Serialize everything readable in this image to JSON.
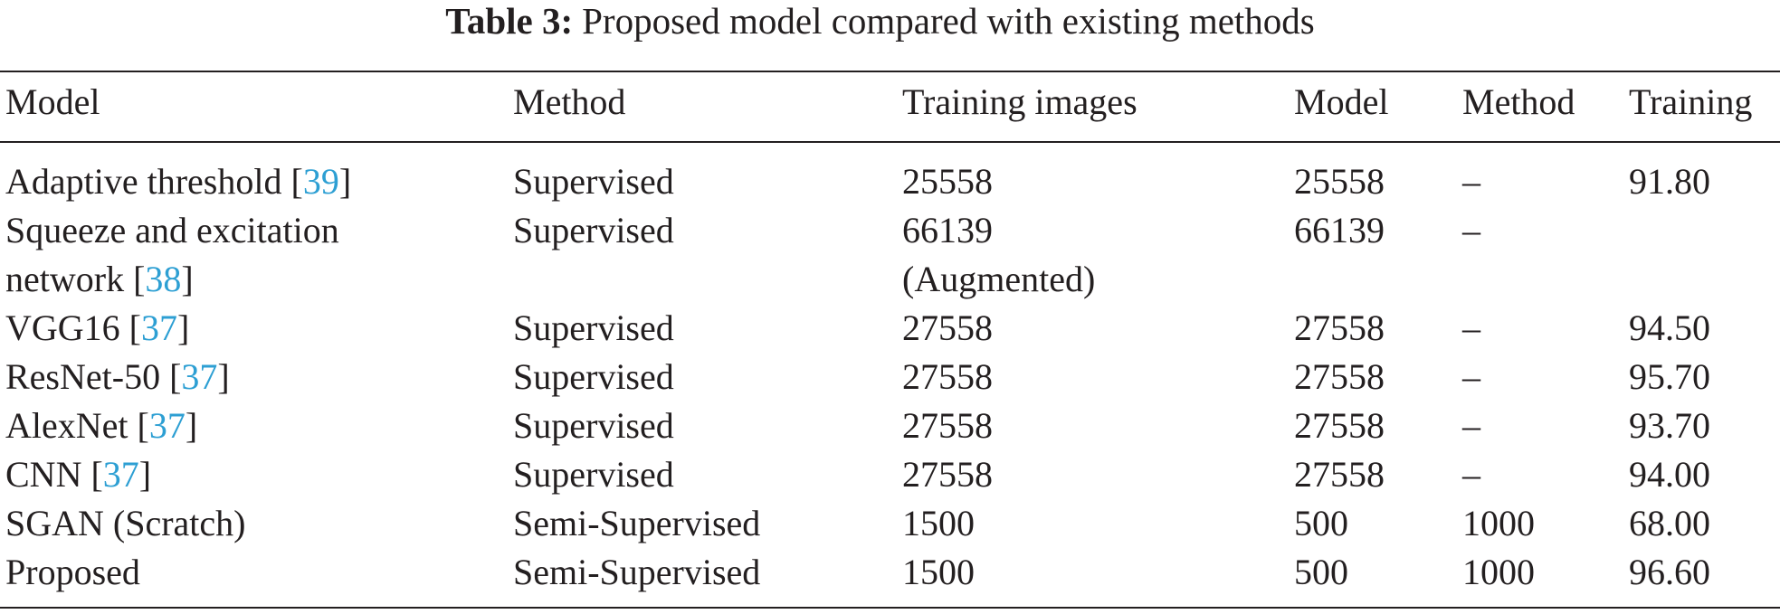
{
  "caption": {
    "label": "Table 3:",
    "text": "Proposed model compared with existing methods"
  },
  "table": {
    "header": [
      "Model",
      "Method",
      "Training images",
      "Model",
      "Method",
      "Training"
    ],
    "rows": [
      [
        [
          {
            "text": "Adaptive threshold ["
          },
          {
            "text": "39",
            "link": true
          },
          {
            "text": "]"
          }
        ],
        "Supervised",
        "25558",
        "25558",
        "–",
        "91.80"
      ],
      [
        [
          {
            "text": "Squeeze and excitation\nnetwork ["
          },
          {
            "text": "38",
            "link": true
          },
          {
            "text": "]"
          }
        ],
        "Supervised",
        "66139\n(Augmented)",
        "66139",
        "–",
        null
      ],
      [
        [
          {
            "text": "VGG16 ["
          },
          {
            "text": "37",
            "link": true
          },
          {
            "text": "]"
          }
        ],
        "Supervised",
        "27558",
        "27558",
        "–",
        "94.50"
      ],
      [
        [
          {
            "text": "ResNet-50 ["
          },
          {
            "text": "37",
            "link": true
          },
          {
            "text": "]"
          }
        ],
        "Supervised",
        "27558",
        "27558",
        "–",
        "95.70"
      ],
      [
        [
          {
            "text": "AlexNet ["
          },
          {
            "text": "37",
            "link": true
          },
          {
            "text": "]"
          }
        ],
        "Supervised",
        "27558",
        "27558",
        "–",
        "93.70"
      ],
      [
        [
          {
            "text": "CNN ["
          },
          {
            "text": "37",
            "link": true
          },
          {
            "text": "]"
          }
        ],
        "Supervised",
        "27558",
        "27558",
        "–",
        "94.00"
      ],
      [
        [
          {
            "text": "SGAN (Scratch)"
          }
        ],
        "Semi-Supervised",
        "1500",
        "500",
        "1000",
        "68.00"
      ],
      [
        [
          {
            "text": "Proposed"
          }
        ],
        "Semi-Supervised",
        "1500",
        "500",
        "1000",
        "96.60"
      ]
    ]
  }
}
